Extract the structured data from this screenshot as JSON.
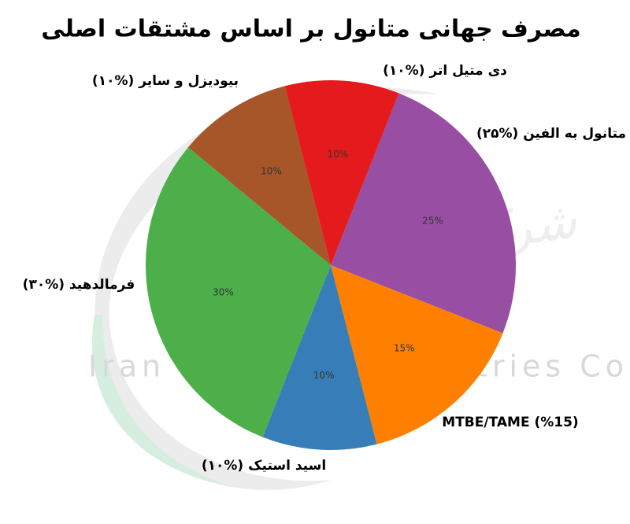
{
  "chart_data": {
    "type": "pie",
    "title": "مصرف جهانی متانول بر اساس مشتقات اصلی",
    "categories": [
      "متانول به الفین (%۲۵)",
      "MTBE/TAME (%15)",
      "اسید استیک (%۱۰)",
      "فرمالدهید (%۳۰)",
      "بیودیزل و سایر (%۱۰)",
      "دی متیل اتر (%۱۰)"
    ],
    "values": [
      25,
      15,
      10,
      30,
      10,
      10
    ],
    "value_labels": [
      "25%",
      "15%",
      "10%",
      "30%",
      "10%",
      "10%"
    ],
    "colors": [
      "#984ea3",
      "#ff7f00",
      "#377eb8",
      "#4daf4a",
      "#a65628",
      "#e41a1c"
    ],
    "start_angle": 21.6
  },
  "watermark": {
    "text": "Iran Methanol Industries Co",
    "persian": "شرکت متانول ایران"
  }
}
